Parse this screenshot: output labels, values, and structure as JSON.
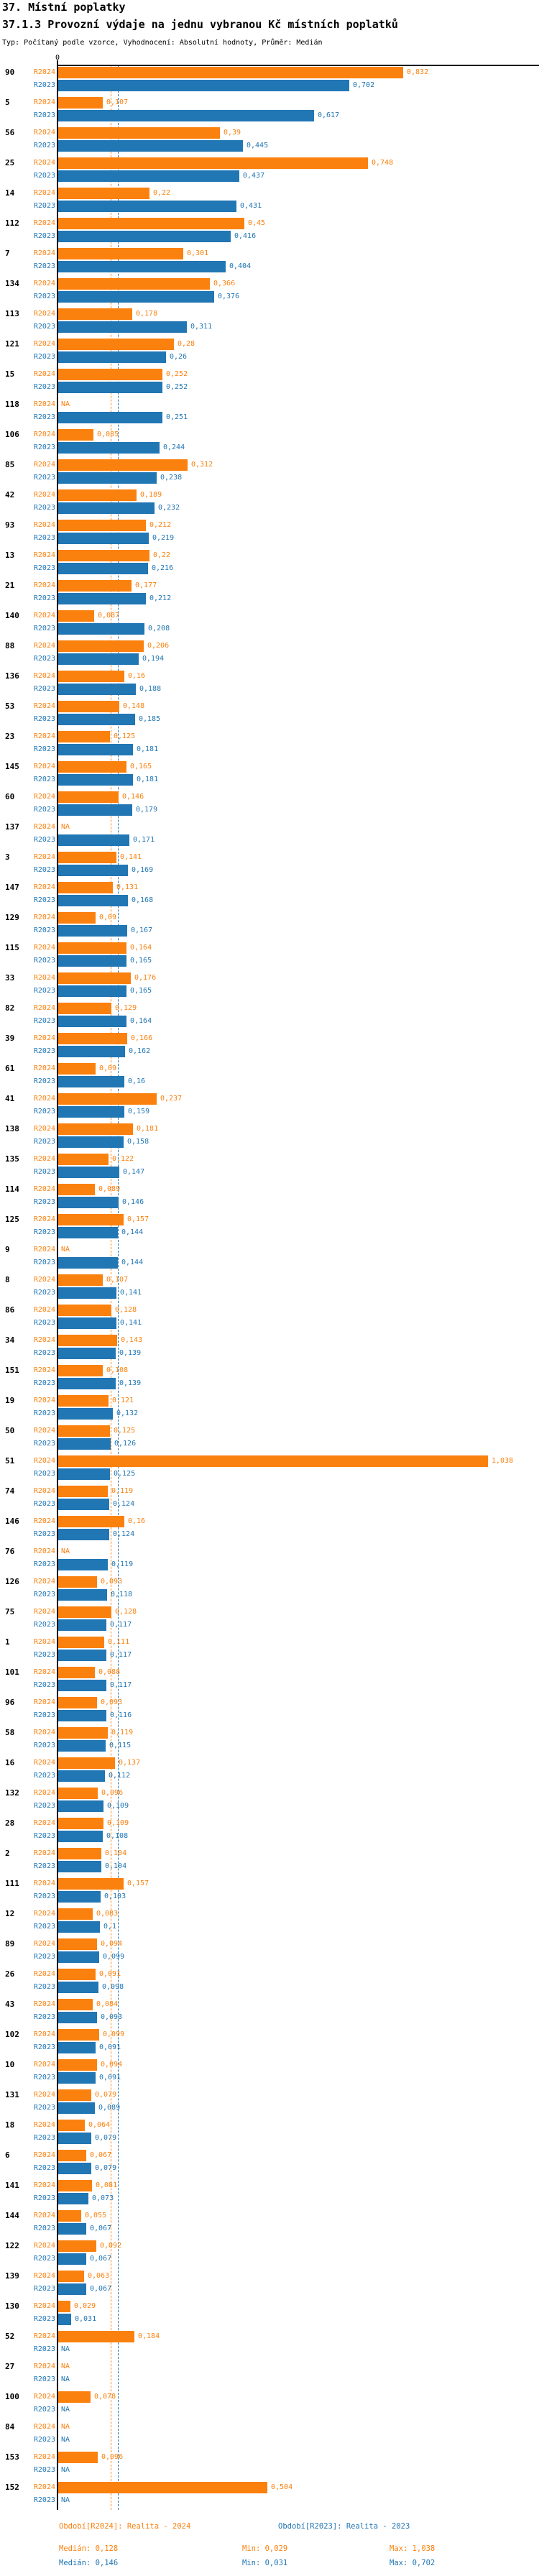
{
  "header": {
    "title": "37. Místní poplatky",
    "subtitle": "37.1.3 Provozní výdaje na jednu vybranou Kč místních poplatků",
    "meta": "Typ: Počítaný podle vzorce, Vyhodnocení: Absolutní hodnoty, Průměr: Medián"
  },
  "chart_data": {
    "type": "bar",
    "orientation": "horizontal-grouped",
    "title": "37.1.3 Provozní výdaje na jednu vybranou Kč místních poplatků",
    "xlabel": "",
    "ylabel": "",
    "xlim": [
      0,
      1.16
    ],
    "grid": false,
    "decimal_separator": ",",
    "axis_zero_label": "0",
    "na_label": "NA",
    "series": [
      {
        "key": "a",
        "name": "R2024",
        "color": "#fb810e",
        "median": 0.128
      },
      {
        "key": "b",
        "name": "R2023",
        "color": "#2176b4",
        "median": 0.146
      }
    ],
    "rows": [
      {
        "c": "90",
        "a": 0.832,
        "b": 0.702
      },
      {
        "c": "5",
        "a": 0.107,
        "b": 0.617
      },
      {
        "c": "56",
        "a": 0.39,
        "b": 0.445
      },
      {
        "c": "25",
        "a": 0.748,
        "b": 0.437
      },
      {
        "c": "14",
        "a": 0.22,
        "b": 0.431
      },
      {
        "c": "112",
        "a": 0.45,
        "b": 0.416
      },
      {
        "c": "7",
        "a": 0.301,
        "b": 0.404
      },
      {
        "c": "134",
        "a": 0.366,
        "b": 0.376
      },
      {
        "c": "113",
        "a": 0.178,
        "b": 0.311
      },
      {
        "c": "121",
        "a": 0.28,
        "b": 0.26
      },
      {
        "c": "15",
        "a": 0.252,
        "b": 0.252
      },
      {
        "c": "118",
        "a": null,
        "b": 0.251
      },
      {
        "c": "106",
        "a": 0.085,
        "b": 0.244
      },
      {
        "c": "85",
        "a": 0.312,
        "b": 0.238
      },
      {
        "c": "42",
        "a": 0.189,
        "b": 0.232
      },
      {
        "c": "93",
        "a": 0.212,
        "b": 0.219
      },
      {
        "c": "13",
        "a": 0.22,
        "b": 0.216
      },
      {
        "c": "21",
        "a": 0.177,
        "b": 0.212
      },
      {
        "c": "140",
        "a": 0.087,
        "b": 0.208
      },
      {
        "c": "88",
        "a": 0.206,
        "b": 0.194
      },
      {
        "c": "136",
        "a": 0.16,
        "b": 0.188
      },
      {
        "c": "53",
        "a": 0.148,
        "b": 0.185
      },
      {
        "c": "23",
        "a": 0.125,
        "b": 0.181
      },
      {
        "c": "145",
        "a": 0.165,
        "b": 0.181
      },
      {
        "c": "60",
        "a": 0.146,
        "b": 0.179
      },
      {
        "c": "137",
        "a": null,
        "b": 0.171
      },
      {
        "c": "3",
        "a": 0.141,
        "b": 0.169
      },
      {
        "c": "147",
        "a": 0.131,
        "b": 0.168
      },
      {
        "c": "129",
        "a": 0.09,
        "b": 0.167
      },
      {
        "c": "115",
        "a": 0.164,
        "b": 0.165
      },
      {
        "c": "33",
        "a": 0.176,
        "b": 0.165
      },
      {
        "c": "82",
        "a": 0.129,
        "b": 0.164
      },
      {
        "c": "39",
        "a": 0.166,
        "b": 0.162
      },
      {
        "c": "61",
        "a": 0.09,
        "b": 0.16
      },
      {
        "c": "41",
        "a": 0.237,
        "b": 0.159
      },
      {
        "c": "138",
        "a": 0.181,
        "b": 0.158
      },
      {
        "c": "135",
        "a": 0.122,
        "b": 0.147
      },
      {
        "c": "114",
        "a": 0.089,
        "b": 0.146
      },
      {
        "c": "125",
        "a": 0.157,
        "b": 0.144
      },
      {
        "c": "9",
        "a": null,
        "b": 0.144
      },
      {
        "c": "8",
        "a": 0.107,
        "b": 0.141
      },
      {
        "c": "86",
        "a": 0.128,
        "b": 0.141
      },
      {
        "c": "34",
        "a": 0.143,
        "b": 0.139
      },
      {
        "c": "151",
        "a": 0.108,
        "b": 0.139
      },
      {
        "c": "19",
        "a": 0.121,
        "b": 0.132
      },
      {
        "c": "50",
        "a": 0.125,
        "b": 0.126
      },
      {
        "c": "51",
        "a": 1.038,
        "b": 0.125
      },
      {
        "c": "74",
        "a": 0.119,
        "b": 0.124
      },
      {
        "c": "146",
        "a": 0.16,
        "b": 0.124
      },
      {
        "c": "76",
        "a": null,
        "b": 0.119
      },
      {
        "c": "126",
        "a": 0.093,
        "b": 0.118
      },
      {
        "c": "75",
        "a": 0.128,
        "b": 0.117
      },
      {
        "c": "1",
        "a": 0.111,
        "b": 0.117
      },
      {
        "c": "101",
        "a": 0.088,
        "b": 0.117
      },
      {
        "c": "96",
        "a": 0.093,
        "b": 0.116
      },
      {
        "c": "58",
        "a": 0.119,
        "b": 0.115
      },
      {
        "c": "16",
        "a": 0.137,
        "b": 0.112
      },
      {
        "c": "132",
        "a": 0.096,
        "b": 0.109
      },
      {
        "c": "28",
        "a": 0.109,
        "b": 0.108
      },
      {
        "c": "2",
        "a": 0.104,
        "b": 0.104
      },
      {
        "c": "111",
        "a": 0.157,
        "b": 0.103
      },
      {
        "c": "12",
        "a": 0.083,
        "b": 0.1
      },
      {
        "c": "89",
        "a": 0.094,
        "b": 0.099
      },
      {
        "c": "26",
        "a": 0.091,
        "b": 0.098
      },
      {
        "c": "43",
        "a": 0.084,
        "b": 0.093
      },
      {
        "c": "102",
        "a": 0.099,
        "b": 0.091
      },
      {
        "c": "10",
        "a": 0.094,
        "b": 0.091
      },
      {
        "c": "131",
        "a": 0.079,
        "b": 0.089
      },
      {
        "c": "18",
        "a": 0.064,
        "b": 0.079
      },
      {
        "c": "6",
        "a": 0.067,
        "b": 0.079
      },
      {
        "c": "141",
        "a": 0.081,
        "b": 0.073
      },
      {
        "c": "144",
        "a": 0.055,
        "b": 0.067
      },
      {
        "c": "122",
        "a": 0.092,
        "b": 0.067
      },
      {
        "c": "139",
        "a": 0.063,
        "b": 0.067
      },
      {
        "c": "130",
        "a": 0.029,
        "b": 0.031
      },
      {
        "c": "52",
        "a": 0.184,
        "b": null
      },
      {
        "c": "27",
        "a": null,
        "b": null
      },
      {
        "c": "100",
        "a": 0.078,
        "b": null
      },
      {
        "c": "84",
        "a": null,
        "b": null
      },
      {
        "c": "153",
        "a": 0.096,
        "b": null
      },
      {
        "c": "152",
        "a": 0.504,
        "b": null
      }
    ]
  },
  "footer": {
    "legend_2024": "Období[R2024]: Realita - 2024",
    "legend_2023": "Období[R2023]: Realita - 2023",
    "stats_2024": {
      "median": "Medián: 0,128",
      "min": "Min: 0,029",
      "max": "Max: 1,038"
    },
    "stats_2023": {
      "median": "Medián: 0,146",
      "min": "Min: 0,031",
      "max": "Max: 0,702"
    }
  }
}
